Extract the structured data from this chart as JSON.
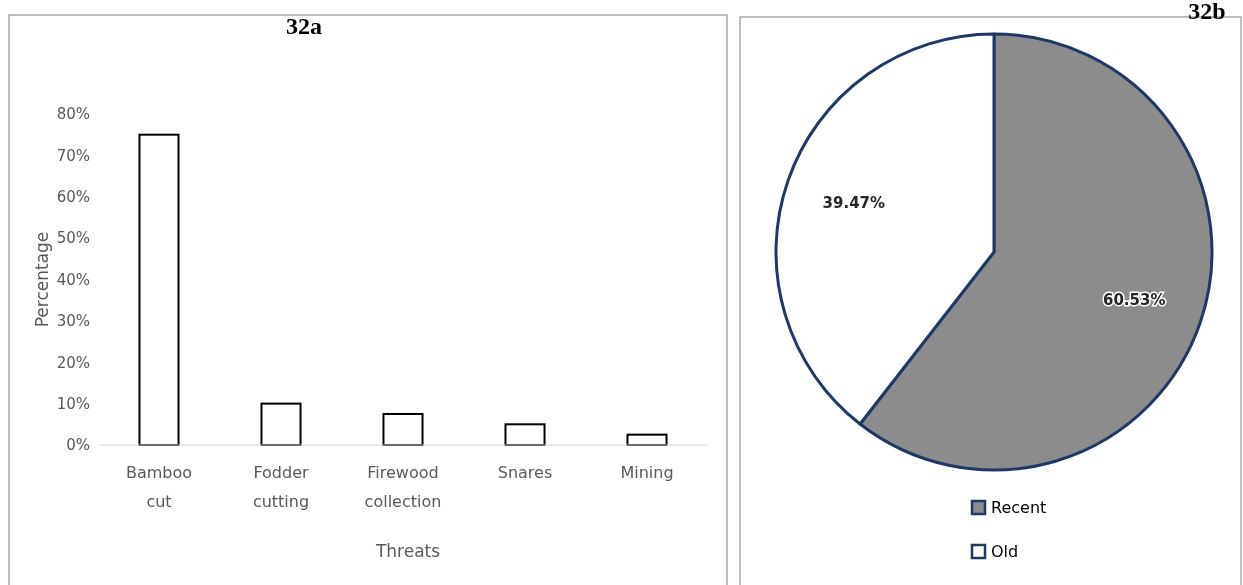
{
  "chart_data": [
    {
      "type": "bar",
      "title": "32a",
      "xlabel": "Threats",
      "ylabel": "Percentage",
      "categories": [
        "Bamboo cut",
        "Fodder cutting",
        "Firewood collection",
        "Snares",
        "Mining"
      ],
      "values": [
        75,
        10,
        7.5,
        5,
        2.5
      ],
      "color": "#ffffff",
      "ylim": [
        0,
        80
      ],
      "yticks": [
        {
          "value": 0,
          "label": "0%"
        },
        {
          "value": 10,
          "label": "10%"
        },
        {
          "value": 20,
          "label": "20%"
        },
        {
          "value": 30,
          "label": "30%"
        },
        {
          "value": 40,
          "label": "40%"
        },
        {
          "value": 50,
          "label": "50%"
        },
        {
          "value": 60,
          "label": "60%"
        },
        {
          "value": 70,
          "label": "70%"
        },
        {
          "value": 80,
          "label": "80%"
        }
      ],
      "grid": false
    },
    {
      "type": "pie",
      "title": "32b",
      "categories": [
        "Recent",
        "Old"
      ],
      "values": [
        60.53,
        39.47
      ],
      "colors": [
        "#8c8c8c",
        "#ffffff"
      ],
      "value_labels": [
        "60.53%",
        "39.47%"
      ],
      "legend": "bottom"
    }
  ]
}
